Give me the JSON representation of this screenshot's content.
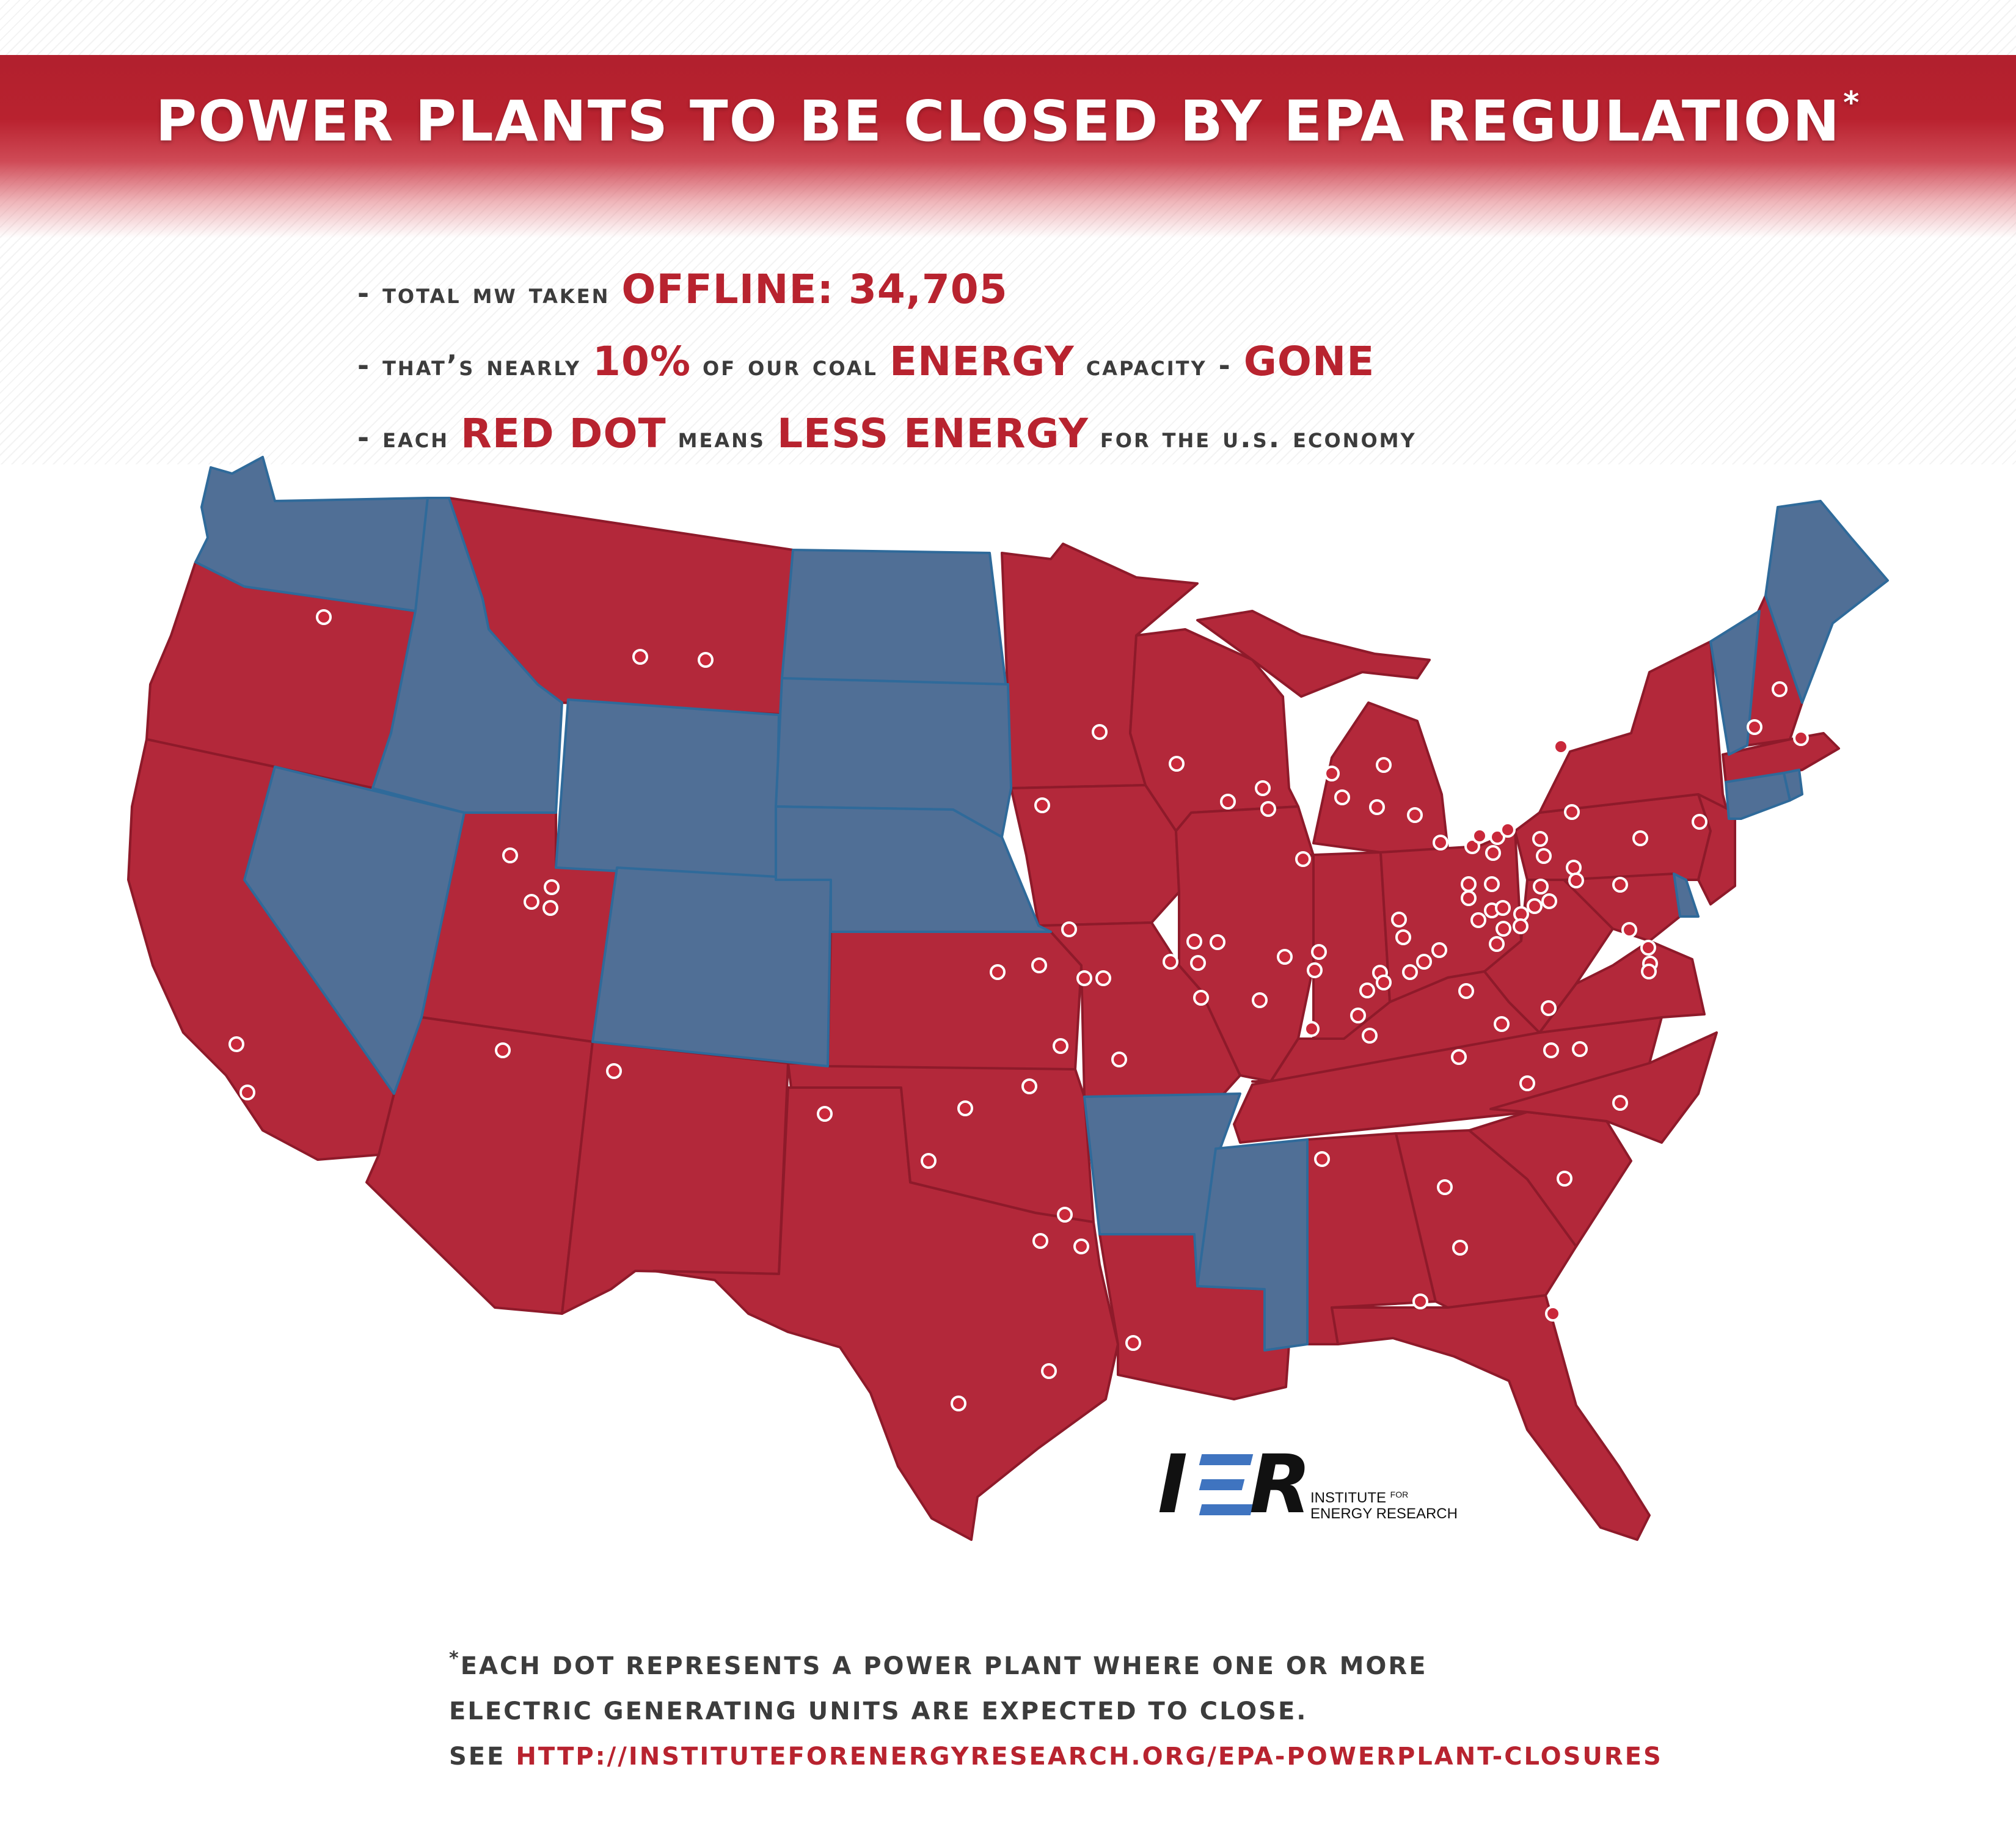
{
  "header": {
    "title": "POWER PLANTS TO BE CLOSED BY EPA REGULATION",
    "title_mark": "*"
  },
  "bullets": [
    [
      "- total mw taken ",
      "OFFLINE: 34,705"
    ],
    [
      "- that’s nearly ",
      "10%",
      " of our coal ",
      "ENERGY",
      " capacity - ",
      "GONE"
    ],
    [
      "- each ",
      "RED DOT",
      " means ",
      "LESS ENERGY",
      " for the u.s. economy"
    ]
  ],
  "logo": {
    "letter_i": "I",
    "letter_r": "R",
    "line1": "INSTITUTE",
    "line1_small": "FOR",
    "line2": "ENERGY RESEARCH"
  },
  "footnote": {
    "mark": "*",
    "line1": "EACH DOT REPRESENTS A POWER PLANT WHERE ONE OR MORE",
    "line2": "ELECTRIC GENERATING UNITS ARE EXPECTED TO CLOSE.",
    "line3_prefix": "SEE ",
    "url": "HTTP://INSTITUTEFORENERGYRESEARCH.ORG/EPA-POWERPLANT-CLOSURES"
  },
  "colors": {
    "red_state": "#b3283a",
    "red_border": "#8e1a2a",
    "blue_state": "#506f96",
    "blue_border": "#2f6a9a",
    "accent_red": "#b8232f",
    "dot_fill": "#c9283a",
    "dot_stroke": "#ffffff"
  },
  "map": {
    "closing_plant_markers": 104,
    "states_red": [
      "OR",
      "CA",
      "MT",
      "UT",
      "AZ",
      "NM",
      "TX",
      "OK",
      "KS",
      "MN",
      "IA",
      "MO",
      "LA",
      "WI",
      "IL",
      "MI",
      "IN",
      "OH",
      "KY",
      "TN",
      "AL",
      "GA",
      "FL",
      "SC",
      "NC",
      "VA",
      "WV",
      "PA",
      "NY",
      "NJ",
      "MD",
      "MA",
      "NH"
    ],
    "states_blue": [
      "WA",
      "ID",
      "NV",
      "WY",
      "CO",
      "ND",
      "SD",
      "NE",
      "AR",
      "MS",
      "ME",
      "VT",
      "CT",
      "RI",
      "DE"
    ]
  }
}
